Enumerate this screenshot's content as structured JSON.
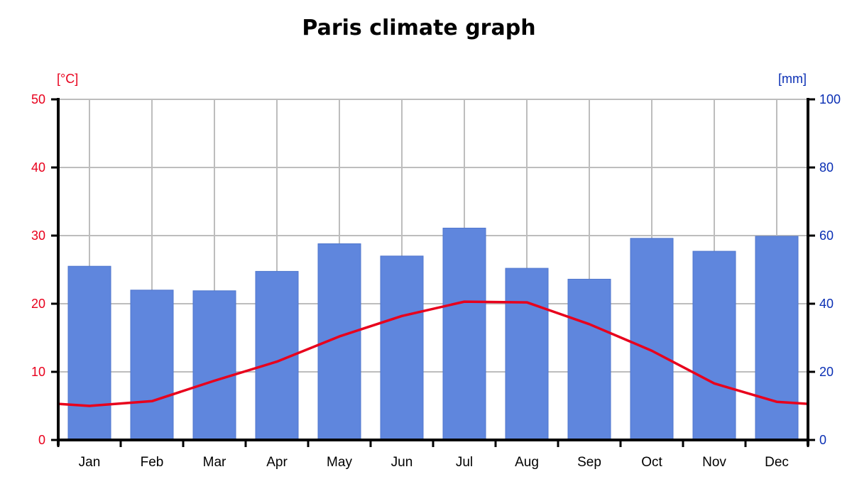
{
  "chart_data": {
    "type": "bar",
    "title": "Paris climate graph",
    "categories": [
      "Jan",
      "Feb",
      "Mar",
      "Apr",
      "May",
      "Jun",
      "Jul",
      "Aug",
      "Sep",
      "Oct",
      "Nov",
      "Dec"
    ],
    "series": [
      {
        "type": "bar",
        "axis": "right",
        "values": [
          51,
          44,
          43.8,
          49.5,
          57.6,
          54,
          62.2,
          50.4,
          47.2,
          59.2,
          55.4,
          59.8
        ]
      },
      {
        "type": "line",
        "axis": "left",
        "values": [
          5.0,
          5.7,
          8.7,
          11.5,
          15.2,
          18.2,
          20.3,
          20.2,
          17.0,
          13.1,
          8.3,
          5.6
        ]
      }
    ],
    "line_edge_values": {
      "left": 5.3,
      "right": 5.3
    },
    "y_left": {
      "unit_label": "[°C]",
      "ylim": [
        0,
        50
      ],
      "ticks": [
        0,
        10,
        20,
        30,
        40,
        50
      ]
    },
    "y_right": {
      "unit_label": "[mm]",
      "ylim": [
        0,
        100
      ],
      "ticks": [
        0,
        20,
        40,
        60,
        80,
        100
      ]
    },
    "grid": true,
    "colors": {
      "bar": "#5f86dd",
      "line": "#e8001c",
      "left_axis_text": "#e8001c",
      "right_axis_text": "#0a2fb4",
      "grid": "#bdbdbd"
    }
  }
}
